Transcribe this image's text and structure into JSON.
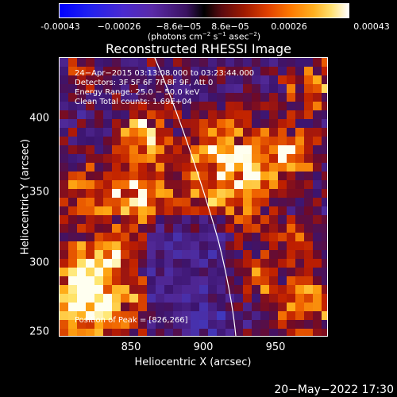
{
  "colorbar": {
    "ticks": [
      "-0.00043",
      "−0.00026",
      "−8.6e−05",
      "8.6e−05",
      "0.00026",
      "0.00043"
    ],
    "units_prefix": "(photons cm",
    "units_exp1": "−2",
    "units_mid": " s",
    "units_exp2": "−1",
    "units_mid2": " asec",
    "units_exp3": "−2",
    "units_suffix": ")"
  },
  "image": {
    "title": "Reconstructed RHESSI Image",
    "xlabel": "Heliocentric X (arcsec)",
    "ylabel": "Heliocentric Y (arcsec)",
    "x_ticks": [
      "850",
      "900",
      "950"
    ],
    "y_ticks": [
      "400",
      "350",
      "300",
      "250"
    ],
    "x_range": [
      802,
      990
    ],
    "y_range": [
      247,
      432
    ],
    "info_lines": [
      "24−Apr−2015 03:13:08.000 to 03:23:44.000",
      "Detectors: 3F 5F 6F 7F 8F 9F, Att 0",
      "Energy Range: 25.0 − 50.0 keV",
      "Clean     Total counts: 1.69E+04"
    ],
    "peak_label": "Position of Peak = [826,266]",
    "peak": [
      826,
      266
    ]
  },
  "footer": {
    "date": "20−May−2022 17:30"
  }
}
